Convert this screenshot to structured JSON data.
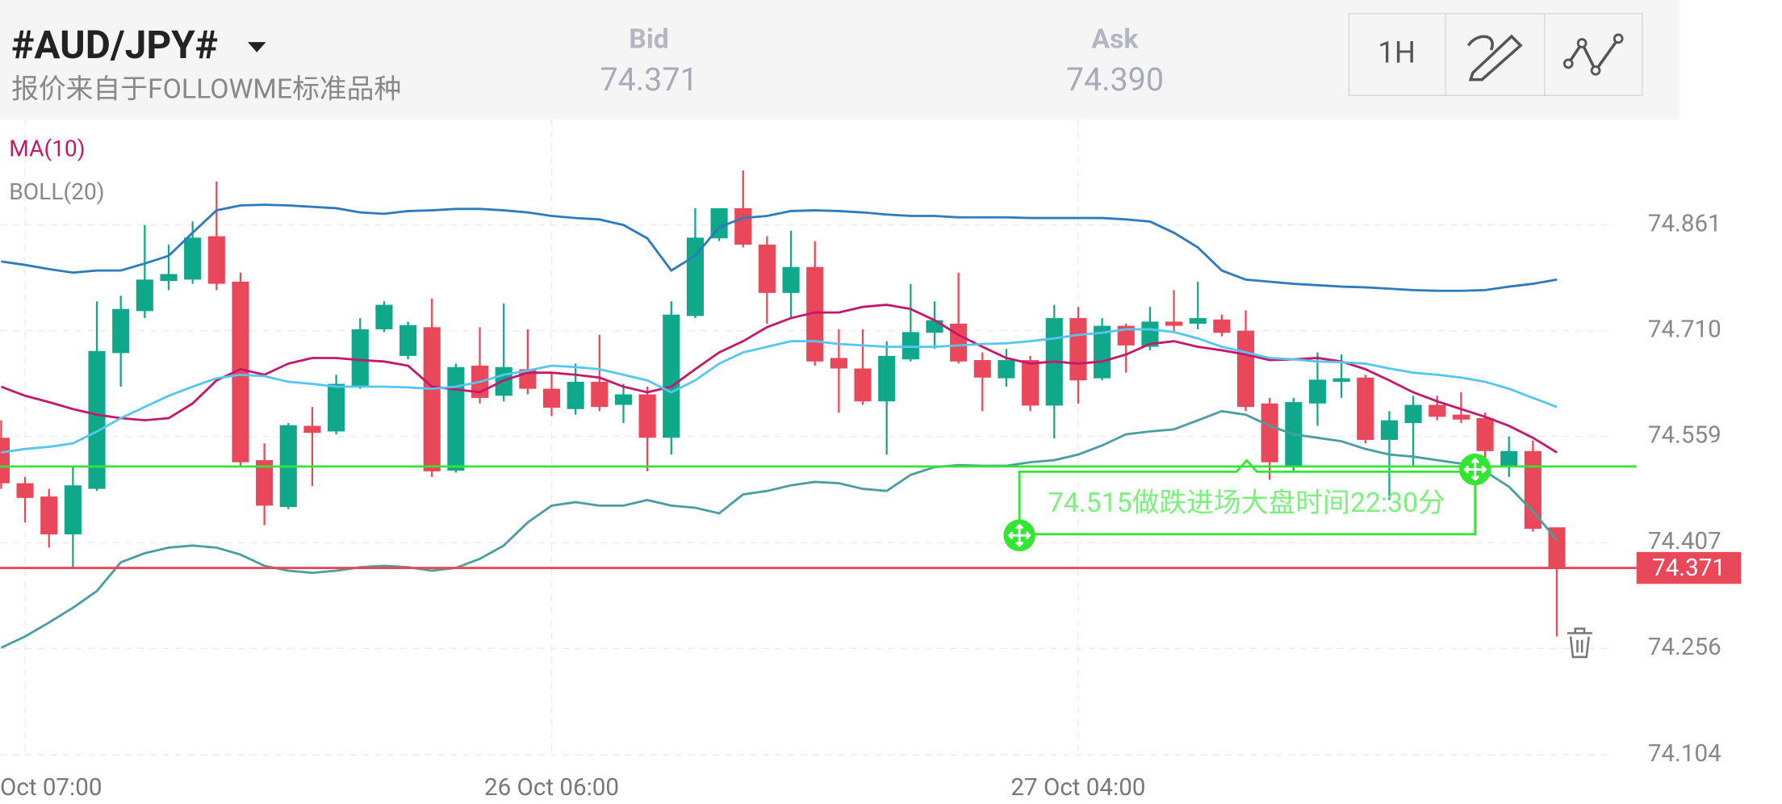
{
  "header": {
    "symbol": "#AUD/JPY#",
    "source": "报价来自于FOLLOWME标准品种",
    "bid_label": "Bid",
    "bid": "74.371",
    "ask_label": "Ask",
    "ask": "74.390",
    "timeframe": "1H"
  },
  "chart_data": {
    "type": "candlestick",
    "categories": [
      null,
      "Oct 07:00",
      null,
      null,
      null,
      null,
      null,
      null,
      null,
      null,
      null,
      null,
      null,
      null,
      null,
      null,
      null,
      null,
      null,
      null,
      null,
      null,
      null,
      "26 Oct 06:00",
      null,
      null,
      null,
      null,
      null,
      null,
      null,
      null,
      null,
      null,
      null,
      null,
      null,
      null,
      null,
      null,
      null,
      null,
      null,
      null,
      null,
      "27 Oct 04:00",
      null,
      null,
      null,
      null,
      null,
      null,
      null,
      null,
      null,
      null,
      null,
      null,
      null,
      null,
      null,
      null,
      null,
      null,
      null,
      null
    ],
    "open": [
      74.557,
      74.492,
      74.473,
      74.419,
      74.484,
      74.678,
      74.738,
      74.781,
      74.783,
      74.845,
      74.78,
      74.525,
      74.458,
      74.574,
      74.566,
      74.63,
      74.712,
      74.674,
      74.715,
      74.51,
      74.66,
      74.617,
      74.655,
      74.627,
      74.598,
      74.637,
      74.604,
      74.619,
      74.557,
      74.731,
      74.842,
      74.885,
      74.833,
      74.764,
      74.801,
      74.671,
      74.656,
      74.609,
      74.669,
      74.707,
      74.72,
      74.668,
      74.642,
      74.668,
      74.603,
      74.728,
      74.642,
      74.717,
      74.687,
      74.723,
      74.72,
      74.726,
      74.71,
      74.606,
      74.517,
      74.606,
      74.637,
      74.643,
      74.554,
      74.578,
      74.604,
      74.59,
      74.585,
      74.517,
      74.538,
      74.429
    ],
    "high": [
      74.582,
      74.501,
      74.484,
      74.517,
      74.752,
      74.76,
      74.861,
      74.833,
      74.866,
      74.923,
      74.793,
      74.549,
      74.578,
      74.601,
      74.647,
      74.728,
      74.752,
      74.723,
      74.756,
      74.663,
      74.715,
      74.749,
      74.712,
      74.65,
      74.663,
      74.704,
      74.634,
      74.63,
      74.752,
      74.885,
      74.885,
      74.939,
      74.845,
      74.853,
      74.838,
      74.712,
      74.712,
      74.695,
      74.777,
      74.752,
      74.793,
      74.679,
      74.684,
      74.674,
      74.747,
      74.744,
      74.728,
      74.72,
      74.744,
      74.768,
      74.78,
      74.733,
      74.739,
      74.614,
      74.614,
      74.679,
      74.676,
      74.647,
      74.595,
      74.617,
      74.617,
      74.622,
      74.593,
      74.559,
      74.553,
      74.429
    ],
    "low": [
      74.484,
      74.436,
      74.4,
      74.371,
      74.481,
      74.63,
      74.728,
      74.768,
      74.777,
      74.768,
      74.517,
      74.432,
      74.455,
      74.488,
      74.562,
      74.627,
      74.708,
      74.669,
      74.501,
      74.507,
      74.606,
      74.609,
      74.619,
      74.588,
      74.59,
      74.595,
      74.578,
      74.509,
      74.533,
      74.728,
      74.838,
      74.829,
      74.72,
      74.728,
      74.66,
      74.593,
      74.604,
      74.533,
      74.666,
      74.684,
      74.663,
      74.595,
      74.63,
      74.595,
      74.556,
      74.606,
      74.639,
      74.65,
      74.682,
      74.708,
      74.712,
      74.702,
      74.595,
      74.497,
      74.51,
      74.574,
      74.614,
      74.549,
      74.468,
      74.517,
      74.582,
      74.578,
      74.517,
      74.501,
      74.423,
      74.273
    ],
    "close": [
      74.492,
      74.471,
      74.419,
      74.489,
      74.681,
      74.741,
      74.783,
      74.791,
      74.843,
      74.777,
      74.522,
      74.46,
      74.575,
      74.564,
      74.634,
      74.712,
      74.747,
      74.718,
      74.509,
      74.658,
      74.614,
      74.658,
      74.627,
      74.6,
      74.637,
      74.601,
      74.619,
      74.557,
      74.733,
      74.843,
      74.885,
      74.833,
      74.764,
      74.801,
      74.666,
      74.656,
      74.609,
      74.674,
      74.708,
      74.725,
      74.666,
      74.643,
      74.668,
      74.603,
      74.728,
      74.639,
      74.717,
      74.689,
      74.723,
      74.717,
      74.728,
      74.707,
      74.601,
      74.522,
      74.608,
      74.64,
      74.642,
      74.554,
      74.582,
      74.604,
      74.587,
      74.583,
      74.538,
      74.538,
      74.427,
      74.371
    ],
    "up_color": "#0fa88a",
    "down_color": "#e8485a",
    "series": [
      {
        "name": "MA(10)",
        "color": "#c4196a",
        "values": [
          74.63,
          74.617,
          74.608,
          74.598,
          74.59,
          74.585,
          74.582,
          74.585,
          74.606,
          74.639,
          74.655,
          74.647,
          74.663,
          74.671,
          74.671,
          74.668,
          74.666,
          74.66,
          74.63,
          74.626,
          74.622,
          74.639,
          74.65,
          74.65,
          74.647,
          74.643,
          74.63,
          74.622,
          74.63,
          74.655,
          74.679,
          74.695,
          74.715,
          74.728,
          74.736,
          74.736,
          74.744,
          74.747,
          74.741,
          74.725,
          74.704,
          74.687,
          74.671,
          74.663,
          74.666,
          74.663,
          74.666,
          74.676,
          74.691,
          74.695,
          74.687,
          74.682,
          74.676,
          74.668,
          74.669,
          74.671,
          74.666,
          74.655,
          74.639,
          74.622,
          74.609,
          74.598,
          74.587,
          74.574,
          74.557,
          74.536
        ]
      },
      {
        "name": "BOLL(20)",
        "color": "#888888",
        "lines": [
          {
            "color": "#2b7bbd",
            "values": [
              74.809,
              74.804,
              74.798,
              74.793,
              74.796,
              74.796,
              74.806,
              74.817,
              74.85,
              74.882,
              74.889,
              74.89,
              74.889,
              74.887,
              74.885,
              74.879,
              74.877,
              74.881,
              74.882,
              74.884,
              74.884,
              74.882,
              74.879,
              74.874,
              74.871,
              74.869,
              74.861,
              74.842,
              74.796,
              74.817,
              74.858,
              74.871,
              74.874,
              74.881,
              74.882,
              74.881,
              74.879,
              74.876,
              74.874,
              74.874,
              74.872,
              74.872,
              74.872,
              74.871,
              74.871,
              74.871,
              74.871,
              74.869,
              74.866,
              74.85,
              74.829,
              74.796,
              74.783,
              74.78,
              74.777,
              74.775,
              74.773,
              74.772,
              74.77,
              74.768,
              74.767,
              74.767,
              74.768,
              74.773,
              74.777,
              74.783
            ]
          },
          {
            "color": "#55c6f2",
            "values": [
              74.536,
              74.541,
              74.544,
              74.549,
              74.566,
              74.585,
              74.601,
              74.617,
              74.63,
              74.642,
              74.647,
              74.645,
              74.637,
              74.634,
              74.63,
              74.63,
              74.63,
              74.629,
              74.627,
              74.63,
              74.637,
              74.647,
              74.653,
              74.66,
              74.658,
              74.655,
              74.647,
              74.639,
              74.622,
              74.639,
              74.663,
              74.679,
              74.687,
              74.695,
              74.695,
              74.691,
              74.689,
              74.687,
              74.687,
              74.687,
              74.689,
              74.691,
              74.692,
              74.695,
              74.699,
              74.704,
              74.707,
              74.712,
              74.712,
              74.708,
              74.699,
              74.687,
              74.679,
              74.671,
              74.669,
              74.666,
              74.665,
              74.663,
              74.656,
              74.65,
              74.647,
              74.643,
              74.637,
              74.627,
              74.614,
              74.601
            ]
          },
          {
            "color": "#4a9ea0",
            "values": [
              74.257,
              74.273,
              74.293,
              74.314,
              74.338,
              74.379,
              74.392,
              74.4,
              74.403,
              74.4,
              74.39,
              74.374,
              74.367,
              74.364,
              74.367,
              74.372,
              74.374,
              74.372,
              74.367,
              74.371,
              74.384,
              74.403,
              74.436,
              74.46,
              74.465,
              74.46,
              74.46,
              74.468,
              74.46,
              74.457,
              74.449,
              74.476,
              74.481,
              74.489,
              74.494,
              74.492,
              74.484,
              74.481,
              74.504,
              74.515,
              74.518,
              74.517,
              74.517,
              74.522,
              74.525,
              74.533,
              74.546,
              74.562,
              74.566,
              74.569,
              74.582,
              74.595,
              74.59,
              74.574,
              74.562,
              74.557,
              74.552,
              74.541,
              74.533,
              74.53,
              74.525,
              74.52,
              74.509,
              74.487,
              74.452,
              74.411
            ]
          }
        ]
      }
    ],
    "ylim": [
      74.078,
      75.012
    ],
    "yticks": [
      74.104,
      74.256,
      74.407,
      74.559,
      {
        "value": 74.71,
        "label": "74.710"
      },
      74.861
    ],
    "grid": true,
    "hlines": [
      {
        "value": 74.516,
        "color": "#33e633"
      }
    ],
    "last_price": {
      "value": 74.371,
      "color": "#e8485a"
    },
    "annotation": {
      "text": "74.515做跌进场大盘时间22:30分",
      "color": "#33e633"
    }
  }
}
